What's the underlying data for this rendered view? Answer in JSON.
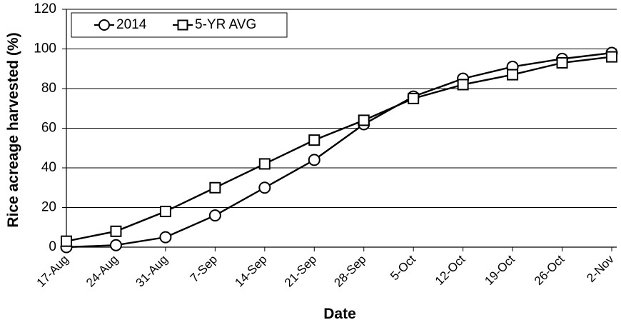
{
  "chart_data": {
    "type": "line",
    "title": "",
    "xlabel": "Date",
    "ylabel": "Rice acreage harvested (%)",
    "categories": [
      "17-Aug",
      "24-Aug",
      "31-Aug",
      "7-Sep",
      "14-Sep",
      "21-Sep",
      "28-Sep",
      "5-Oct",
      "12-Oct",
      "19-Oct",
      "26-Oct",
      "2-Nov"
    ],
    "ylim": [
      0,
      120
    ],
    "yticks": [
      0,
      20,
      40,
      60,
      80,
      100,
      120
    ],
    "grid": true,
    "legend_position": "top-left",
    "series": [
      {
        "name": "2014",
        "marker": "circle",
        "values": [
          0,
          1,
          5,
          16,
          30,
          44,
          62,
          76,
          85,
          91,
          95,
          98
        ]
      },
      {
        "name": "5-YR AVG",
        "marker": "square",
        "values": [
          3,
          8,
          18,
          30,
          42,
          54,
          64,
          75,
          82,
          87,
          93,
          96
        ]
      }
    ]
  }
}
